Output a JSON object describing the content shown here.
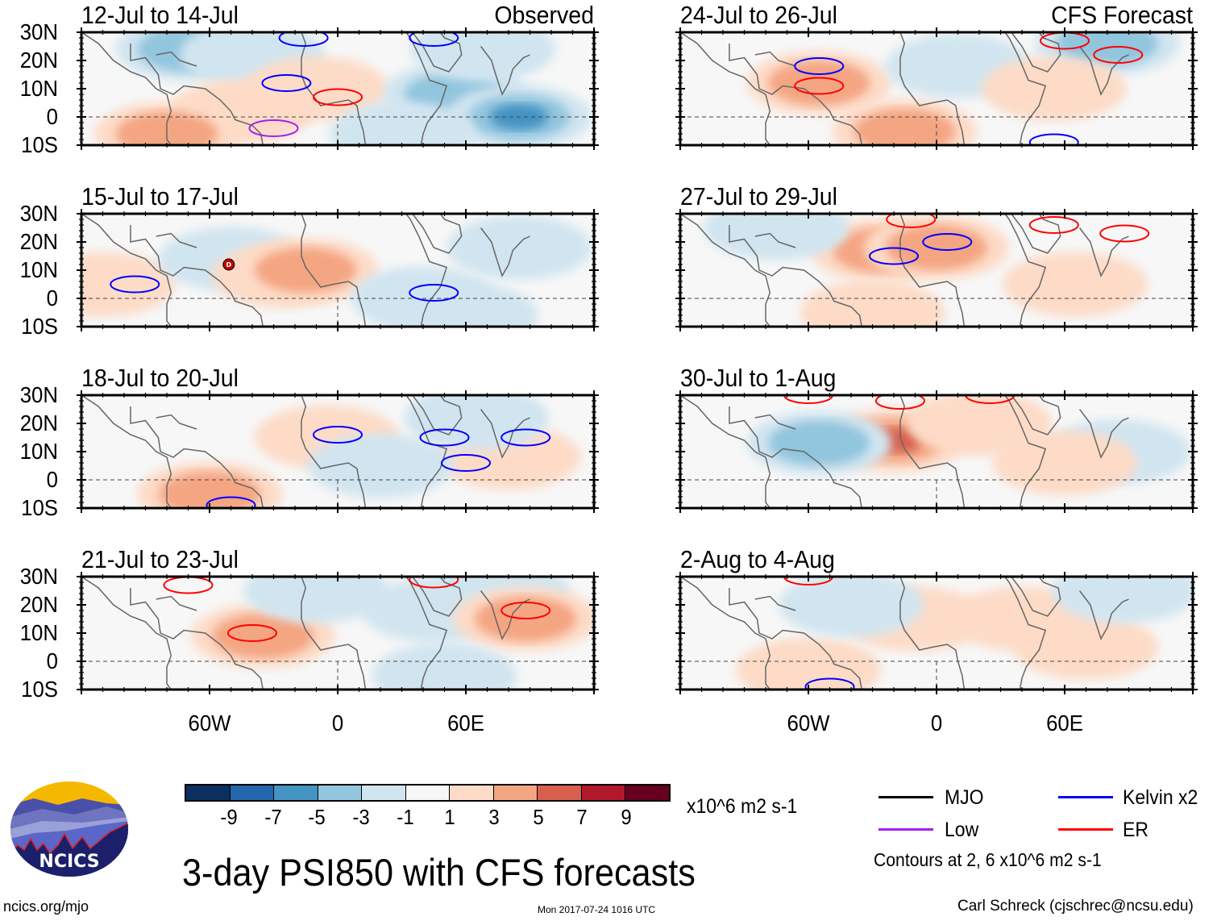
{
  "chart_data": {
    "type": "heatmap",
    "title": "3-day PSI850 with CFS forecasts",
    "variable": "850-hPa streamfunction anomaly (PSI850)",
    "units": "x10^6 m2 s-1",
    "x_axis": {
      "ticks": [
        "60W",
        "0",
        "60E"
      ],
      "range": [
        "120W",
        "120E"
      ]
    },
    "y_axis": {
      "ticks": [
        "30N",
        "20N",
        "10N",
        "0",
        "10S"
      ],
      "range": [
        "10S",
        "30N"
      ]
    },
    "colorbar": {
      "levels": [
        -9,
        -7,
        -5,
        -3,
        -1,
        1,
        3,
        5,
        7,
        9
      ],
      "labels": [
        "-9",
        "-7",
        "-5",
        "-3",
        "-1",
        "1",
        "3",
        "5",
        "7",
        "9"
      ],
      "colors": [
        "#0b2f5e",
        "#2467ac",
        "#4393c3",
        "#92c5de",
        "#d1e5f0",
        "#f7f7f7",
        "#fddbc7",
        "#f4a582",
        "#d6604d",
        "#b2182b",
        "#67001f"
      ]
    },
    "legend": [
      {
        "name": "MJO",
        "color": "#000000"
      },
      {
        "name": "Kelvin x2",
        "color": "#0000ff"
      },
      {
        "name": "Low",
        "color": "#a020f0"
      },
      {
        "name": "ER",
        "color": "#ff0000"
      }
    ],
    "contour_note": "Contours at 2, 6 x10^6 m2 s-1",
    "panels": [
      {
        "id": "p1",
        "period": "12-Jul to 14-Jul",
        "tag": "Observed",
        "column": "left",
        "row": 1,
        "anomalies": [
          {
            "lon": -70,
            "lat": 24,
            "value": -4
          },
          {
            "lon": -40,
            "lat": 22,
            "value": -2
          },
          {
            "lon": -45,
            "lat": 2,
            "value": 2
          },
          {
            "lon": -80,
            "lat": -6,
            "value": 4
          },
          {
            "lon": -10,
            "lat": 10,
            "value": 2
          },
          {
            "lon": 55,
            "lat": 8,
            "value": -4
          },
          {
            "lon": 85,
            "lat": 0,
            "value": -6
          },
          {
            "lon": 30,
            "lat": -6,
            "value": -2
          },
          {
            "lon": 68,
            "lat": 24,
            "value": -3
          }
        ],
        "contours": [
          {
            "type": "Kelvin x2",
            "lon": -24,
            "lat": 12
          },
          {
            "type": "Kelvin x2",
            "lon": -16,
            "lat": 28
          },
          {
            "type": "Kelvin x2",
            "lon": 45,
            "lat": 28
          },
          {
            "type": "ER",
            "lon": 0,
            "lat": 7
          },
          {
            "type": "Low",
            "lon": -30,
            "lat": -4
          }
        ]
      },
      {
        "id": "p2",
        "period": "15-Jul to 17-Jul",
        "tag": "",
        "column": "left",
        "row": 2,
        "annotation": "tropical depression symbol (D)",
        "anomalies": [
          {
            "lon": -110,
            "lat": 5,
            "value": 2
          },
          {
            "lon": -50,
            "lat": 14,
            "value": -2
          },
          {
            "lon": -25,
            "lat": 8,
            "value": 2
          },
          {
            "lon": -15,
            "lat": 10,
            "value": 4
          },
          {
            "lon": 40,
            "lat": 0,
            "value": -2
          },
          {
            "lon": 60,
            "lat": -6,
            "value": -3
          },
          {
            "lon": 85,
            "lat": 18,
            "value": -3
          }
        ],
        "contours": [
          {
            "type": "Kelvin x2",
            "lon": -95,
            "lat": 5
          },
          {
            "type": "Kelvin x2",
            "lon": 45,
            "lat": 2
          }
        ]
      },
      {
        "id": "p3",
        "period": "18-Jul to 20-Jul",
        "tag": "",
        "column": "left",
        "row": 3,
        "anomalies": [
          {
            "lon": -60,
            "lat": -5,
            "value": 4
          },
          {
            "lon": -5,
            "lat": 15,
            "value": 3
          },
          {
            "lon": 80,
            "lat": 8,
            "value": 3
          },
          {
            "lon": 20,
            "lat": 5,
            "value": -2
          },
          {
            "lon": 65,
            "lat": 22,
            "value": -2
          }
        ],
        "contours": [
          {
            "type": "Kelvin x2",
            "lon": 0,
            "lat": 16
          },
          {
            "type": "Kelvin x2",
            "lon": 60,
            "lat": 6
          },
          {
            "type": "Kelvin x2",
            "lon": 50,
            "lat": 15
          },
          {
            "type": "Kelvin x2",
            "lon": 88,
            "lat": 15
          },
          {
            "type": "Kelvin x2",
            "lon": -50,
            "lat": -9
          }
        ]
      },
      {
        "id": "p4",
        "period": "21-Jul to 23-Jul",
        "tag": "",
        "column": "left",
        "row": 4,
        "anomalies": [
          {
            "lon": -35,
            "lat": 9,
            "value": 4
          },
          {
            "lon": -10,
            "lat": 25,
            "value": -3
          },
          {
            "lon": 45,
            "lat": 18,
            "value": -3
          },
          {
            "lon": 75,
            "lat": 24,
            "value": -3
          },
          {
            "lon": 88,
            "lat": 15,
            "value": 4
          },
          {
            "lon": 50,
            "lat": -5,
            "value": -2
          }
        ],
        "contours": [
          {
            "type": "ER",
            "lon": -70,
            "lat": 27
          },
          {
            "type": "ER",
            "lon": -40,
            "lat": 10
          },
          {
            "type": "ER",
            "lon": 45,
            "lat": 29
          },
          {
            "type": "ER",
            "lon": 88,
            "lat": 18
          }
        ]
      },
      {
        "id": "p5",
        "period": "24-Jul to 26-Jul",
        "tag": "CFS Forecast",
        "column": "right",
        "row": 1,
        "anomalies": [
          {
            "lon": -55,
            "lat": 12,
            "value": 4
          },
          {
            "lon": -15,
            "lat": -5,
            "value": 4
          },
          {
            "lon": 80,
            "lat": 26,
            "value": -4
          },
          {
            "lon": 10,
            "lat": 18,
            "value": -2
          },
          {
            "lon": 55,
            "lat": 10,
            "value": 2
          }
        ],
        "contours": [
          {
            "type": "Kelvin x2",
            "lon": -55,
            "lat": 18
          },
          {
            "type": "ER",
            "lon": -55,
            "lat": 11
          },
          {
            "type": "ER",
            "lon": 60,
            "lat": 27
          },
          {
            "type": "ER",
            "lon": 85,
            "lat": 22
          },
          {
            "type": "Kelvin x2",
            "lon": 55,
            "lat": -9
          }
        ]
      },
      {
        "id": "p6",
        "period": "27-Jul to 29-Jul",
        "tag": "",
        "column": "right",
        "row": 2,
        "anomalies": [
          {
            "lon": -25,
            "lat": 17,
            "value": 4
          },
          {
            "lon": 0,
            "lat": 18,
            "value": 4
          },
          {
            "lon": 65,
            "lat": 5,
            "value": 2
          },
          {
            "lon": -75,
            "lat": 25,
            "value": -2
          },
          {
            "lon": -30,
            "lat": -5,
            "value": 3
          }
        ],
        "contours": [
          {
            "type": "Kelvin x2",
            "lon": -20,
            "lat": 15
          },
          {
            "type": "Kelvin x2",
            "lon": 5,
            "lat": 20
          },
          {
            "type": "ER",
            "lon": -12,
            "lat": 28
          },
          {
            "type": "ER",
            "lon": 55,
            "lat": 26
          },
          {
            "type": "ER",
            "lon": 88,
            "lat": 23
          }
        ]
      },
      {
        "id": "p7",
        "period": "30-Jul to 1-Aug",
        "tag": "",
        "column": "right",
        "row": 3,
        "anomalies": [
          {
            "lon": -20,
            "lat": 14,
            "value": 6
          },
          {
            "lon": -55,
            "lat": 13,
            "value": -4
          },
          {
            "lon": 20,
            "lat": 20,
            "value": 2
          },
          {
            "lon": 85,
            "lat": 10,
            "value": -2
          },
          {
            "lon": 60,
            "lat": 6,
            "value": 2
          }
        ],
        "contours": [
          {
            "type": "ER",
            "lon": -60,
            "lat": 30
          },
          {
            "type": "ER",
            "lon": -17,
            "lat": 28
          },
          {
            "type": "ER",
            "lon": 25,
            "lat": 30
          }
        ]
      },
      {
        "id": "p8",
        "period": "2-Aug to 4-Aug",
        "tag": "",
        "column": "right",
        "row": 4,
        "anomalies": [
          {
            "lon": -10,
            "lat": 15,
            "value": 2
          },
          {
            "lon": 40,
            "lat": 15,
            "value": 2
          },
          {
            "lon": -60,
            "lat": -3,
            "value": 2
          },
          {
            "lon": 70,
            "lat": 5,
            "value": 2
          },
          {
            "lon": 88,
            "lat": 25,
            "value": -2
          },
          {
            "lon": -40,
            "lat": 20,
            "value": -2
          }
        ],
        "contours": [
          {
            "type": "ER",
            "lon": -60,
            "lat": 30
          },
          {
            "type": "Kelvin x2",
            "lon": -50,
            "lat": -9
          }
        ]
      }
    ]
  },
  "footer": {
    "site": "ncics.org/mjo",
    "timestamp": "Mon 2017-07-24 1016 UTC",
    "author": "Carl Schreck (cjschrec@ncsu.edu)",
    "logo_text": "NCICS"
  }
}
